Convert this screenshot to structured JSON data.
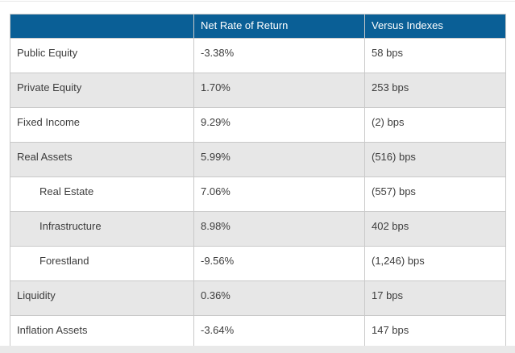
{
  "table": {
    "columns": [
      "",
      "Net Rate of Return",
      "Versus Indexes"
    ],
    "rows": [
      {
        "label": "Public Equity",
        "net_rate": "-3.38%",
        "versus": "58 bps",
        "indent": false
      },
      {
        "label": "Private Equity",
        "net_rate": "1.70%",
        "versus": "253 bps",
        "indent": false
      },
      {
        "label": "Fixed Income",
        "net_rate": "9.29%",
        "versus": "(2) bps",
        "indent": false
      },
      {
        "label": "Real Assets",
        "net_rate": "5.99%",
        "versus": "(516) bps",
        "indent": false
      },
      {
        "label": "Real Estate",
        "net_rate": "7.06%",
        "versus": "(557) bps",
        "indent": true
      },
      {
        "label": "Infrastructure",
        "net_rate": "8.98%",
        "versus": "402 bps",
        "indent": true
      },
      {
        "label": "Forestland",
        "net_rate": "-9.56%",
        "versus": "(1,246) bps",
        "indent": true
      },
      {
        "label": "Liquidity",
        "net_rate": "0.36%",
        "versus": "17 bps",
        "indent": false
      },
      {
        "label": "Inflation Assets",
        "net_rate": "-3.64%",
        "versus": "147 bps",
        "indent": false
      }
    ]
  },
  "chart_data": {
    "type": "table",
    "columns": [
      "",
      "Net Rate of Return",
      "Versus Indexes"
    ],
    "rows": [
      [
        "Public Equity",
        "-3.38%",
        "58 bps"
      ],
      [
        "Private Equity",
        "1.70%",
        "253 bps"
      ],
      [
        "Fixed Income",
        "9.29%",
        "(2) bps"
      ],
      [
        "Real Assets",
        "5.99%",
        "(516) bps"
      ],
      [
        "Real Estate",
        "7.06%",
        "(557) bps"
      ],
      [
        "Infrastructure",
        "8.98%",
        "402 bps"
      ],
      [
        "Forestland",
        "-9.56%",
        "(1,246) bps"
      ],
      [
        "Liquidity",
        "0.36%",
        "17 bps"
      ],
      [
        "Inflation Assets",
        "-3.64%",
        "147 bps"
      ]
    ],
    "net_rate_of_return_pct": [
      -3.38,
      1.7,
      9.29,
      5.99,
      7.06,
      8.98,
      -9.56,
      0.36,
      -3.64
    ],
    "versus_indexes_bps": [
      58,
      253,
      -2,
      -516,
      -557,
      402,
      -1246,
      17,
      147
    ],
    "indented_rows": [
      "Real Estate",
      "Infrastructure",
      "Forestland"
    ],
    "layout": {
      "header_style": "solid-blue",
      "row_striping": "white-gray-alternating"
    }
  },
  "colors": {
    "header_bg": "#0a5f96",
    "header_text": "#ffffff",
    "row_bg": "#ffffff",
    "row_alt_bg": "#e7e7e7",
    "border": "#c9c9c9",
    "body_text": "#3d3d3d"
  }
}
